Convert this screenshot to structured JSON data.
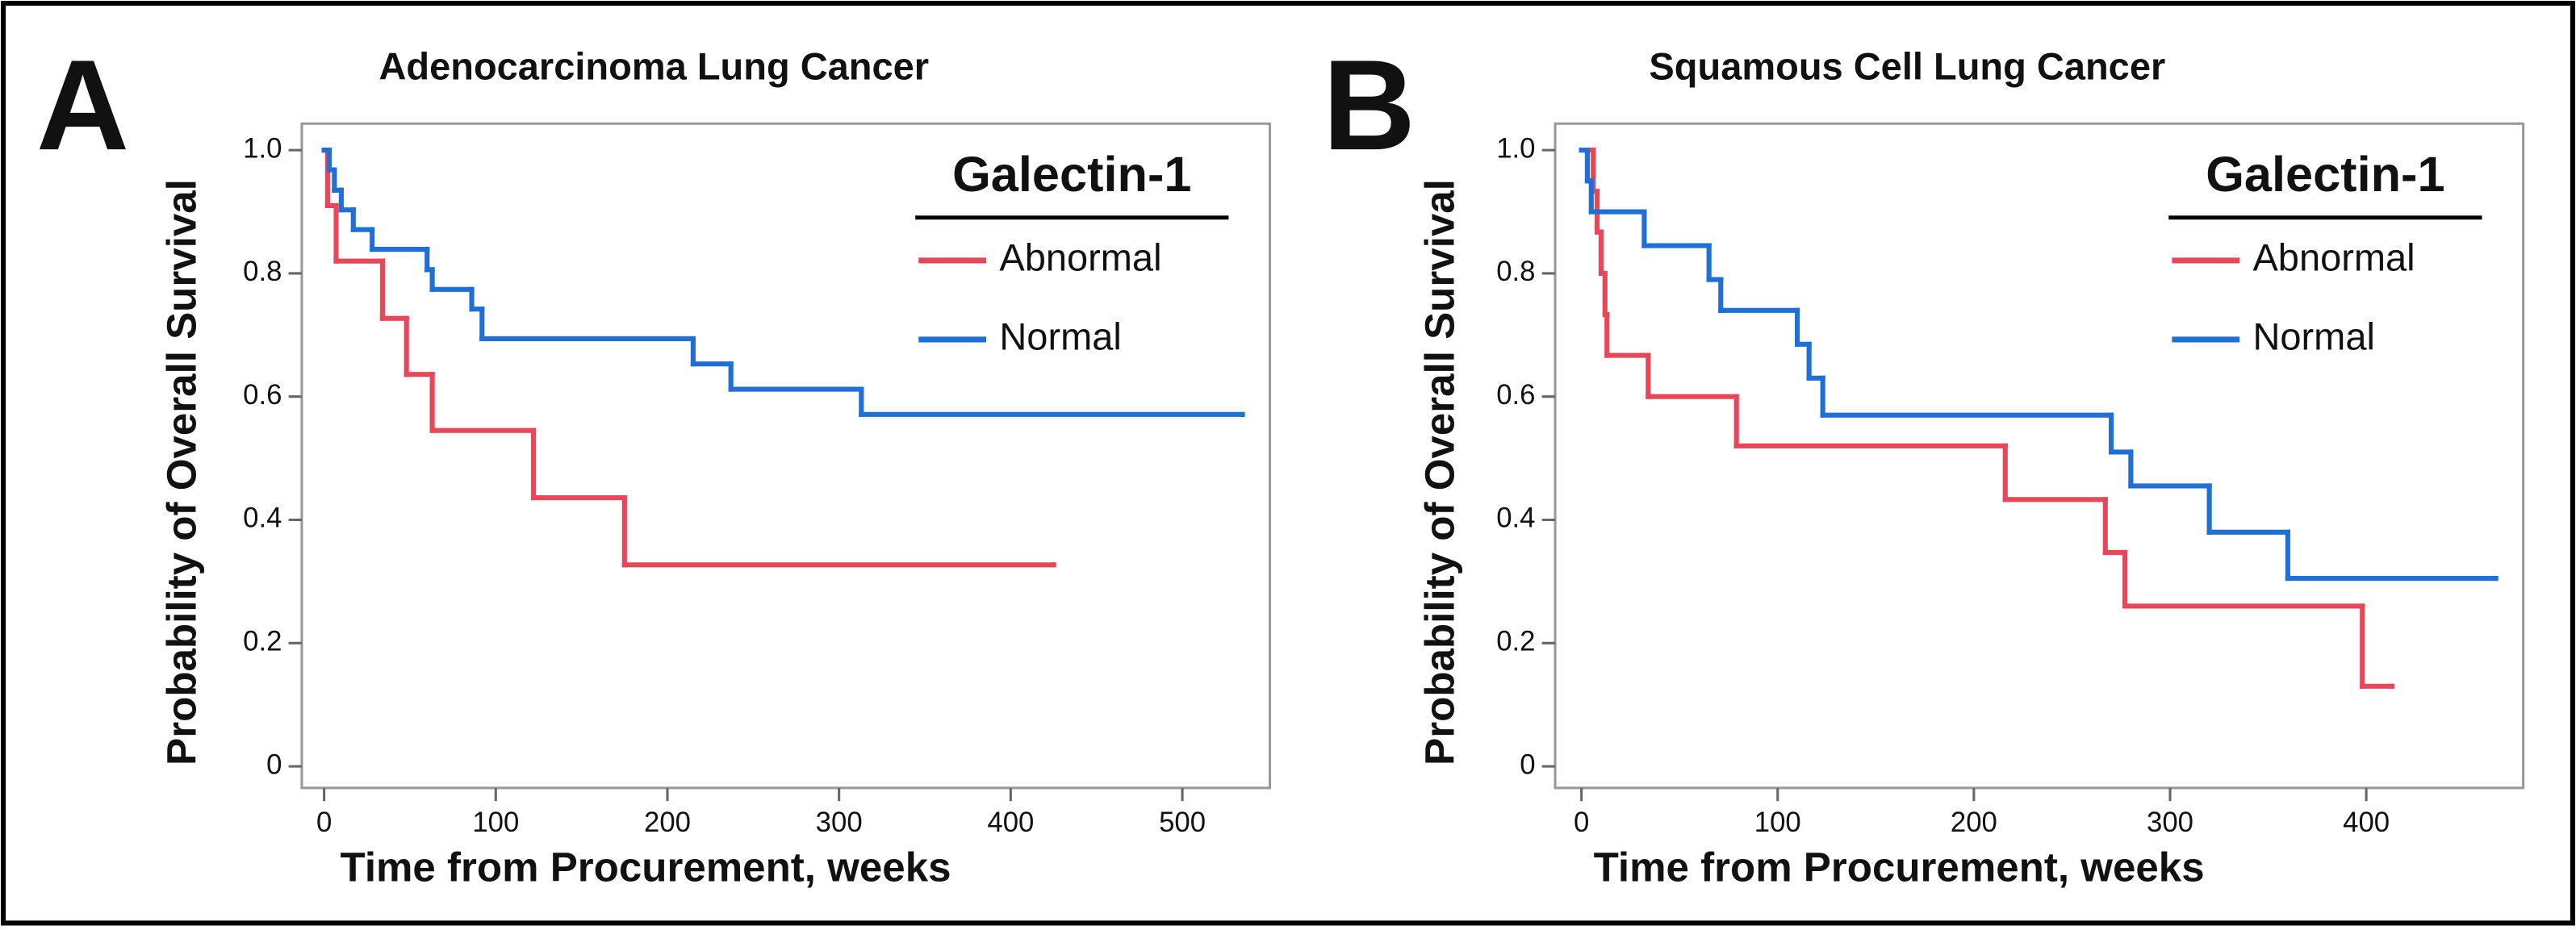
{
  "chart_data": [
    {
      "type": "step",
      "panel": "A",
      "title": "Adenocarcinoma Lung Cancer",
      "x_label": "Time from Procurement, weeks",
      "y_label": "Probability of Overall Survival",
      "legend_title": "Galectin-1",
      "legend": "upper right",
      "xlim": [
        -13,
        551
      ],
      "xticks": [
        0,
        100,
        200,
        300,
        400,
        500
      ],
      "ylim": [
        -0.035,
        1.043
      ],
      "yticks": [
        0,
        {
          "value": 0.2,
          "label": "0.2"
        },
        {
          "value": 0.4,
          "label": "0.4"
        },
        {
          "value": 0.6,
          "label": "0.6"
        },
        {
          "value": 0.8,
          "label": "0.8"
        },
        {
          "value": 1,
          "label": "1.0"
        }
      ],
      "series": [
        {
          "name": "Abnormal",
          "color": "#e8475a",
          "x": [
            0,
            2,
            7,
            34,
            48,
            63,
            122,
            175,
            425
          ],
          "values": [
            1.0,
            0.91,
            0.82,
            0.727,
            0.636,
            0.545,
            0.436,
            0.327,
            0.327
          ]
        },
        {
          "name": "Normal",
          "color": "#1f6fd6",
          "x": [
            0,
            3,
            6,
            10,
            17,
            28,
            60,
            63,
            86,
            92,
            215,
            237,
            313,
            535
          ],
          "values": [
            1.0,
            0.968,
            0.935,
            0.903,
            0.871,
            0.839,
            0.806,
            0.774,
            0.742,
            0.694,
            0.653,
            0.612,
            0.571,
            0.571
          ]
        }
      ]
    },
    {
      "type": "step",
      "panel": "B",
      "title": "Squamous Cell Lung Cancer",
      "x_label": "Time from Procurement, weeks",
      "y_label": "Probability of Overall Survival",
      "legend_title": "Galectin-1",
      "legend": "upper right",
      "xlim": [
        -13.4,
        480
      ],
      "xticks": [
        0,
        100,
        200,
        300,
        400
      ],
      "ylim": [
        -0.035,
        1.043
      ],
      "yticks": [
        0,
        {
          "value": 0.2,
          "label": "0.2"
        },
        {
          "value": 0.4,
          "label": "0.4"
        },
        {
          "value": 0.6,
          "label": "0.6"
        },
        {
          "value": 0.8,
          "label": "0.8"
        },
        {
          "value": 1,
          "label": "1.0"
        }
      ],
      "series": [
        {
          "name": "Abnormal",
          "color": "#e8475a",
          "x": [
            0,
            6,
            8,
            10,
            12,
            13,
            34,
            79,
            216,
            267,
            277,
            398,
            413
          ],
          "values": [
            1.0,
            0.933,
            0.867,
            0.8,
            0.733,
            0.667,
            0.6,
            0.52,
            0.433,
            0.347,
            0.26,
            0.13,
            0.13
          ]
        },
        {
          "name": "Normal",
          "color": "#1f6fd6",
          "x": [
            0,
            3,
            5,
            32,
            65,
            71,
            110,
            116,
            123,
            270,
            280,
            320,
            360,
            466
          ],
          "values": [
            1.0,
            0.95,
            0.9,
            0.845,
            0.79,
            0.74,
            0.685,
            0.63,
            0.57,
            0.51,
            0.455,
            0.38,
            0.305,
            0.305
          ]
        }
      ]
    }
  ]
}
